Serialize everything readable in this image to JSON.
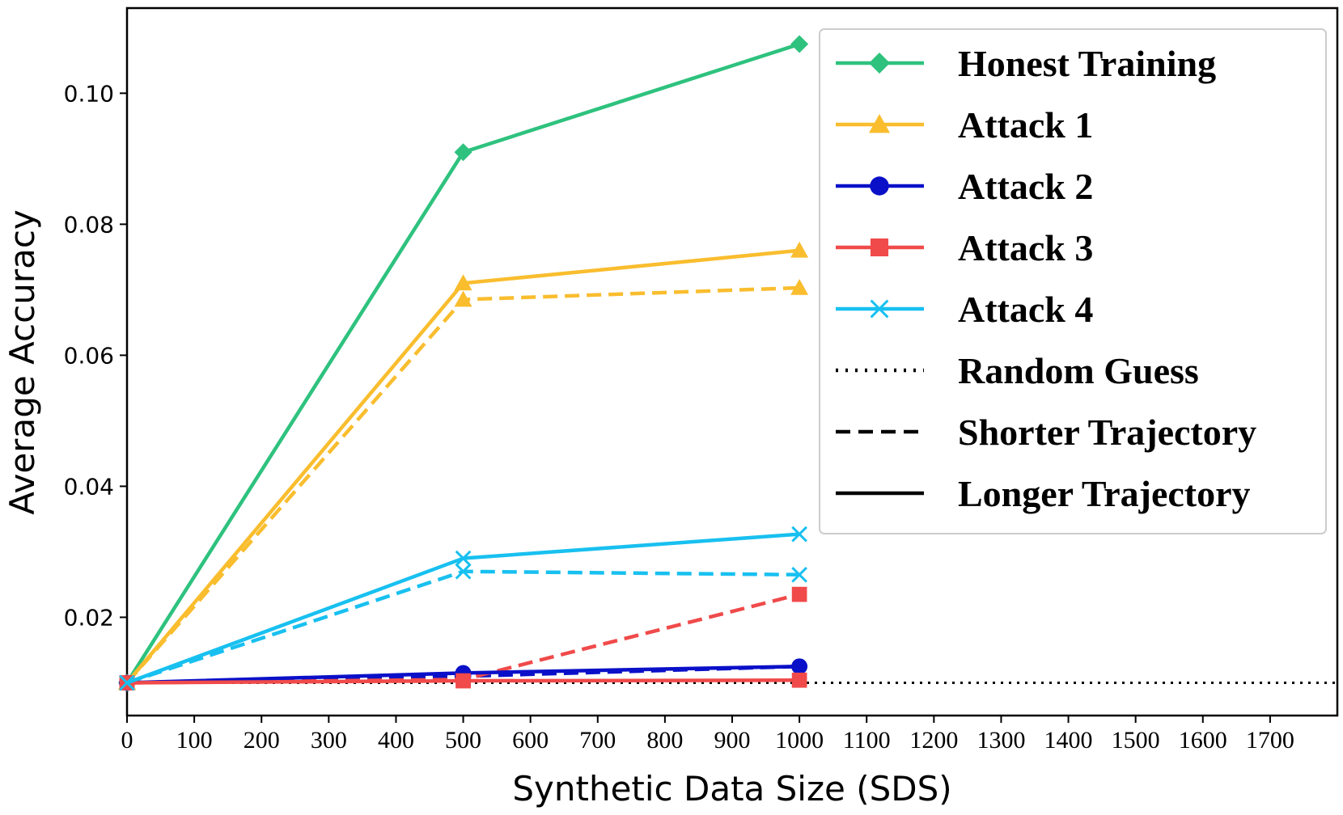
{
  "chart_data": {
    "type": "line",
    "title": "",
    "xlabel": "Synthetic Data Size (SDS)",
    "ylabel": "Average Accuracy",
    "xlim": [
      0,
      1800
    ],
    "ylim": [
      0.005,
      0.113
    ],
    "xticks": [
      0,
      100,
      200,
      300,
      400,
      500,
      600,
      700,
      800,
      900,
      1000,
      1100,
      1200,
      1300,
      1400,
      1500,
      1600,
      1700
    ],
    "yticks": [
      0.02,
      0.04,
      0.06,
      0.08,
      0.1
    ],
    "ytick_labels": [
      "0.02",
      "0.04",
      "0.06",
      "0.08",
      "0.10"
    ],
    "grid": false,
    "legend_position": "top-right",
    "x": [
      0,
      500,
      1000
    ],
    "series": [
      {
        "name": "Honest Training",
        "color": "#2ec27e",
        "marker": "diamond",
        "style": "solid",
        "values": [
          0.01,
          0.091,
          0.1075
        ]
      },
      {
        "name": "Attack 1",
        "color": "#f9bd2e",
        "marker": "triangle",
        "style": "solid",
        "values": [
          0.01,
          0.071,
          0.076
        ]
      },
      {
        "name": "Attack 1",
        "color": "#f9bd2e",
        "marker": "triangle",
        "style": "dashed",
        "values": [
          0.01,
          0.0685,
          0.0703
        ]
      },
      {
        "name": "Attack 2",
        "color": "#0a10c8",
        "marker": "circle",
        "style": "solid",
        "values": [
          0.01,
          0.0115,
          0.0125
        ]
      },
      {
        "name": "Attack 2",
        "color": "#0a10c8",
        "marker": "circle",
        "style": "dashed",
        "values": [
          0.01,
          0.011,
          0.0125
        ]
      },
      {
        "name": "Attack 3",
        "color": "#f04a4a",
        "marker": "square",
        "style": "solid",
        "values": [
          0.01,
          0.0103,
          0.0104
        ]
      },
      {
        "name": "Attack 3",
        "color": "#f04a4a",
        "marker": "square",
        "style": "dashed",
        "values": [
          0.01,
          0.0105,
          0.0235
        ]
      },
      {
        "name": "Attack 4",
        "color": "#18c0f0",
        "marker": "x",
        "style": "solid",
        "values": [
          0.01,
          0.029,
          0.0327
        ]
      },
      {
        "name": "Attack 4",
        "color": "#18c0f0",
        "marker": "x",
        "style": "dashed",
        "values": [
          0.01,
          0.027,
          0.0265
        ]
      }
    ],
    "reference_line": {
      "name": "Random Guess",
      "value": 0.01,
      "style": "dotted",
      "color": "#000000"
    },
    "legend": [
      {
        "label": "Honest Training",
        "color": "#2ec27e",
        "marker": "diamond",
        "style": "solid"
      },
      {
        "label": "Attack 1",
        "color": "#f9bd2e",
        "marker": "triangle",
        "style": "solid"
      },
      {
        "label": "Attack 2",
        "color": "#0a10c8",
        "marker": "circle",
        "style": "solid"
      },
      {
        "label": "Attack 3",
        "color": "#f04a4a",
        "marker": "square",
        "style": "solid"
      },
      {
        "label": "Attack 4",
        "color": "#18c0f0",
        "marker": "x",
        "style": "solid"
      },
      {
        "label": "Random Guess",
        "color": "#000000",
        "marker": "none",
        "style": "dotted"
      },
      {
        "label": "Shorter Trajectory",
        "color": "#000000",
        "marker": "none",
        "style": "dashed"
      },
      {
        "label": "Longer Trajectory",
        "color": "#000000",
        "marker": "none",
        "style": "solid"
      }
    ]
  }
}
